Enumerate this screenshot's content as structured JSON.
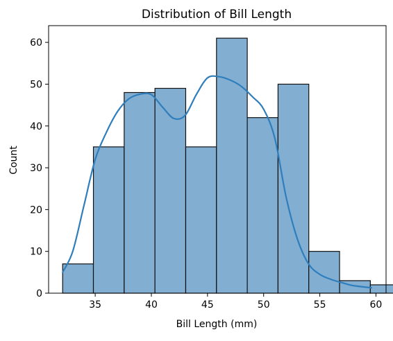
{
  "chart_data": {
    "type": "histogram",
    "title": "Distribution of Bill Length",
    "xlabel": "Bill Length (mm)",
    "ylabel": "Count",
    "xlim": [
      30.85,
      60.9
    ],
    "ylim": [
      0,
      64
    ],
    "x_ticks": [
      35,
      40,
      45,
      50,
      55,
      60
    ],
    "y_ticks": [
      0,
      10,
      20,
      30,
      40,
      50,
      60
    ],
    "grid": false,
    "bins": [
      {
        "start": 32.1,
        "end": 34.84,
        "count": 7
      },
      {
        "start": 34.84,
        "end": 37.58,
        "count": 35
      },
      {
        "start": 37.58,
        "end": 40.32,
        "count": 48
      },
      {
        "start": 40.32,
        "end": 43.06,
        "count": 49
      },
      {
        "start": 43.06,
        "end": 45.8,
        "count": 35
      },
      {
        "start": 45.8,
        "end": 48.54,
        "count": 61
      },
      {
        "start": 48.54,
        "end": 51.28,
        "count": 42
      },
      {
        "start": 51.28,
        "end": 54.02,
        "count": 50
      },
      {
        "start": 54.02,
        "end": 56.76,
        "count": 10
      },
      {
        "start": 56.76,
        "end": 59.5,
        "count": 3
      },
      {
        "start": 59.5,
        "end": 62.24,
        "count": 2
      }
    ],
    "kde": {
      "x": [
        32.1,
        33.0,
        34.0,
        35.0,
        36.0,
        37.0,
        38.0,
        39.0,
        40.0,
        41.0,
        42.0,
        43.0,
        44.0,
        45.0,
        46.0,
        47.0,
        48.0,
        49.0,
        50.0,
        51.0,
        52.0,
        53.0,
        54.0,
        55.0,
        56.0,
        57.0,
        58.0,
        59.6
      ],
      "y": [
        5,
        10,
        21,
        32,
        38.5,
        43.5,
        46.5,
        47.6,
        47.5,
        44.5,
        41.8,
        42.5,
        47.5,
        51.5,
        51.8,
        51,
        49.5,
        47,
        44,
        37,
        23,
        13,
        7,
        4.5,
        3.3,
        2.5,
        1.8,
        1.3
      ]
    },
    "colors": {
      "bar_fill": "#82aed2",
      "bar_edge": "#111111",
      "kde_line": "#2f7ebc",
      "axis": "#000000"
    }
  }
}
